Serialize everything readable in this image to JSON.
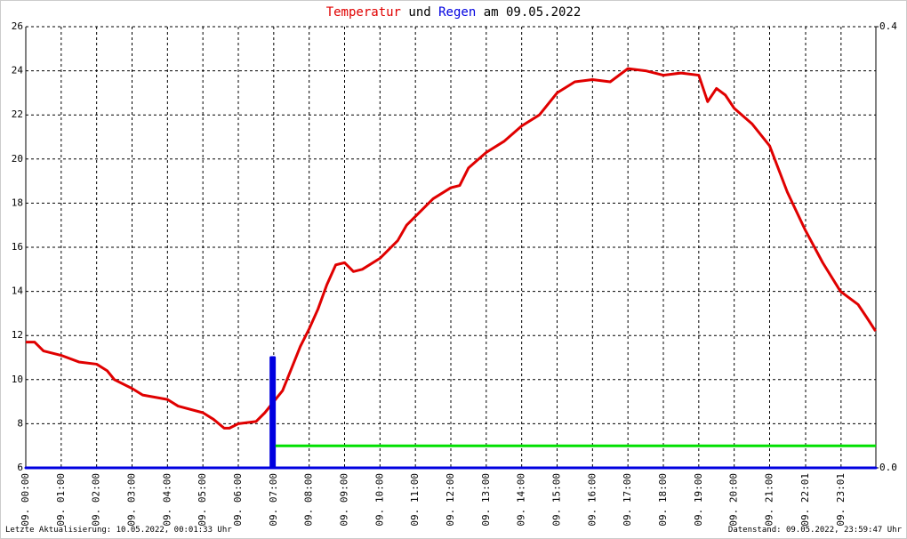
{
  "chart_data": {
    "type": "line",
    "title_connectors": [
      "und",
      "am 09.05.2022"
    ],
    "footer_left": "Letzte Aktualisierung: 10.05.2022, 00:01:33 Uhr",
    "footer_right": "Datenstand: 09.05.2022, 23:59:47 Uhr",
    "xlim": [
      0,
      24
    ],
    "xticks": [
      {
        "value": 0,
        "label": "09. 00:00"
      },
      {
        "value": 1,
        "label": "09. 01:00"
      },
      {
        "value": 2,
        "label": "09. 02:00"
      },
      {
        "value": 3,
        "label": "09. 03:00"
      },
      {
        "value": 4,
        "label": "09. 04:00"
      },
      {
        "value": 5,
        "label": "09. 05:00"
      },
      {
        "value": 6,
        "label": "09. 06:00"
      },
      {
        "value": 7,
        "label": "09. 07:00"
      },
      {
        "value": 8,
        "label": "09. 08:00"
      },
      {
        "value": 9,
        "label": "09. 09:00"
      },
      {
        "value": 10,
        "label": "09. 10:00"
      },
      {
        "value": 11,
        "label": "09. 11:00"
      },
      {
        "value": 12,
        "label": "09. 12:00"
      },
      {
        "value": 13,
        "label": "09. 13:00"
      },
      {
        "value": 14,
        "label": "09. 14:00"
      },
      {
        "value": 15,
        "label": "09. 15:00"
      },
      {
        "value": 16,
        "label": "09. 16:00"
      },
      {
        "value": 17,
        "label": "09. 17:00"
      },
      {
        "value": 18,
        "label": "09. 18:00"
      },
      {
        "value": 19,
        "label": "09. 19:00"
      },
      {
        "value": 20,
        "label": "09. 20:00"
      },
      {
        "value": 21,
        "label": "09. 21:00"
      },
      {
        "value": 22.0167,
        "label": "09. 22:01"
      },
      {
        "value": 23.0167,
        "label": "09. 23:01"
      }
    ],
    "ylim": [
      6,
      26
    ],
    "yticks": [
      6,
      8,
      10,
      12,
      14,
      16,
      18,
      20,
      22,
      24,
      26
    ],
    "y2lim": [
      0,
      0.4
    ],
    "y2ticks": [
      {
        "value": 0,
        "label": "0.0"
      },
      0.4
    ],
    "grid": true,
    "series": [
      {
        "name": "Temperatur",
        "color": "#e00000",
        "kind": "line",
        "x": [
          0,
          0.25,
          0.5,
          1.0,
          1.5,
          2.0,
          2.3,
          2.5,
          3.0,
          3.3,
          4.0,
          4.3,
          5.0,
          5.3,
          5.6,
          5.75,
          6.0,
          6.5,
          6.75,
          7.0,
          7.25,
          7.5,
          7.75,
          8.0,
          8.25,
          8.5,
          8.75,
          9.0,
          9.25,
          9.5,
          10.0,
          10.5,
          10.75,
          11.0,
          11.5,
          12.0,
          12.25,
          12.5,
          13.0,
          13.5,
          14.0,
          14.5,
          15.0,
          15.5,
          16.0,
          16.5,
          17.0,
          17.5,
          18.0,
          18.5,
          19.0,
          19.25,
          19.5,
          19.75,
          20.0,
          20.5,
          21.0,
          21.5,
          22.0,
          22.5,
          23.0,
          23.5,
          23.75,
          23.99
        ],
        "values": [
          11.7,
          11.7,
          11.3,
          11.1,
          10.8,
          10.7,
          10.4,
          10.0,
          9.6,
          9.3,
          9.1,
          8.8,
          8.5,
          8.2,
          7.8,
          7.8,
          8.0,
          8.1,
          8.5,
          9.0,
          9.5,
          10.5,
          11.5,
          12.3,
          13.2,
          14.3,
          15.2,
          15.3,
          14.9,
          15.0,
          15.5,
          16.3,
          17.0,
          17.4,
          18.2,
          18.7,
          18.8,
          19.6,
          20.3,
          20.8,
          21.5,
          22.0,
          23.0,
          23.5,
          23.6,
          23.5,
          24.1,
          24.0,
          23.8,
          23.9,
          23.8,
          22.6,
          23.2,
          22.9,
          22.3,
          21.6,
          20.6,
          18.5,
          16.8,
          15.3,
          14.0,
          13.4,
          12.8,
          12.2
        ]
      },
      {
        "name": "Regen",
        "color": "#0000e0",
        "kind": "area",
        "axis": "y2",
        "x": [
          0,
          6.92,
          6.92,
          7.02,
          7.02,
          24
        ],
        "values": [
          0,
          0,
          0.1,
          0.1,
          0,
          0
        ]
      },
      {
        "color": "#00e000",
        "kind": "line",
        "axis": "y2",
        "x": [
          7.05,
          24
        ],
        "values": [
          0.02,
          0.02
        ]
      }
    ]
  }
}
